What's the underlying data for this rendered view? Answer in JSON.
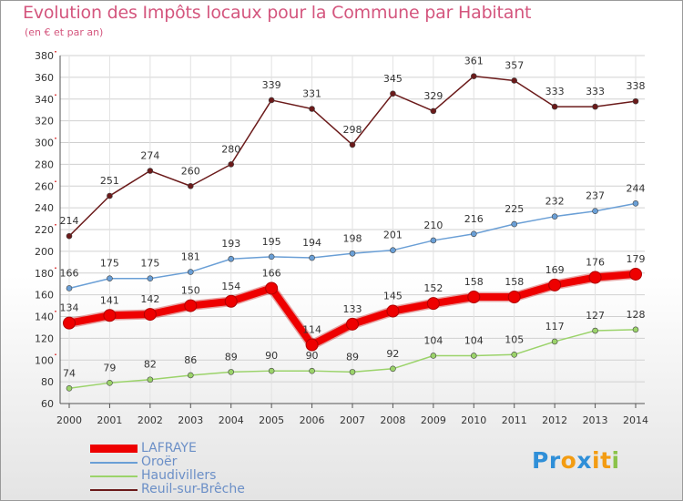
{
  "chart_data": {
    "type": "line",
    "title": "Evolution des Impôts locaux pour la Commune par Habitant",
    "subtitle": "(en € et par an)",
    "x": [
      "2000",
      "2001",
      "2002",
      "2003",
      "2004",
      "2005",
      "2006",
      "2007",
      "2008",
      "2009",
      "2010",
      "2011",
      "2012",
      "2013",
      "2014"
    ],
    "ylim": [
      60,
      380
    ],
    "yticks": [
      60,
      80,
      100,
      120,
      140,
      160,
      180,
      200,
      220,
      240,
      260,
      280,
      300,
      320,
      340,
      360,
      380
    ],
    "grid": true,
    "legend_position": "bottom-left",
    "series": [
      {
        "name": "LAFRAYE",
        "color": "#ee0000",
        "values": [
          134,
          141,
          142,
          150,
          154,
          166,
          114,
          133,
          145,
          152,
          158,
          158,
          169,
          176,
          179
        ]
      },
      {
        "name": "Oroër",
        "color": "#6a9fd6",
        "values": [
          166,
          175,
          175,
          181,
          193,
          195,
          194,
          198,
          201,
          210,
          216,
          225,
          232,
          237,
          244
        ]
      },
      {
        "name": "Haudivillers",
        "color": "#9bd36a",
        "values": [
          74,
          79,
          82,
          86,
          89,
          90,
          90,
          89,
          92,
          104,
          104,
          105,
          117,
          127,
          128
        ]
      },
      {
        "name": "Reuil-sur-Brêche",
        "color": "#6b1a1a",
        "values": [
          214,
          251,
          274,
          260,
          280,
          339,
          331,
          298,
          345,
          329,
          361,
          357,
          333,
          333,
          338
        ]
      }
    ]
  },
  "logo": {
    "letters": [
      "P",
      "r",
      "o",
      "x",
      "i",
      "t",
      "i"
    ],
    "colors": [
      "#2f8fd8",
      "#2f8fd8",
      "#f39c12",
      "#2f8fd8",
      "#f39c12",
      "#f39c12",
      "#8bc34a"
    ]
  }
}
